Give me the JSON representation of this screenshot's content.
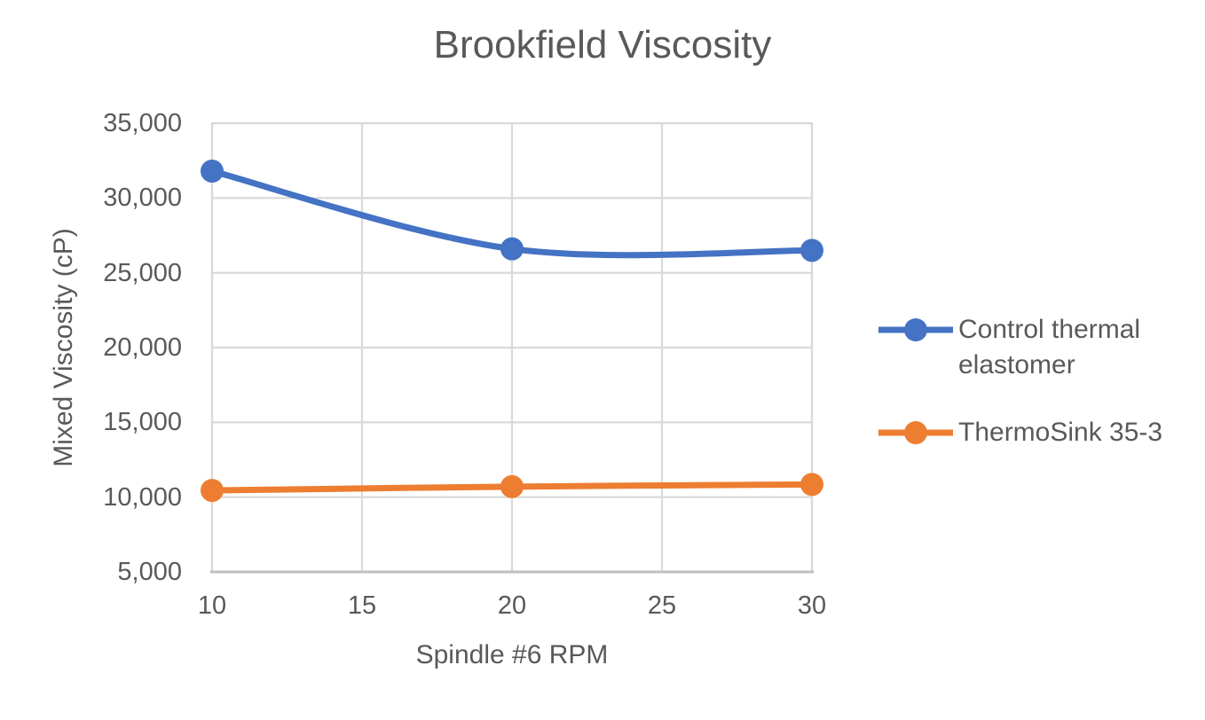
{
  "chart_data": {
    "type": "line",
    "title": "Brookfield Viscosity",
    "xlabel": "Spindle #6 RPM",
    "ylabel": "Mixed Viscosity (cP)",
    "x_axis": {
      "min": 10,
      "max": 30,
      "tick_values": [
        10,
        15,
        20,
        25,
        30
      ],
      "tick_labels": [
        "10",
        "15",
        "20",
        "25",
        "30"
      ]
    },
    "y_axis": {
      "min": 5000,
      "max": 35000,
      "step": 5000,
      "tick_values": [
        35000,
        30000,
        25000,
        20000,
        15000,
        10000,
        5000
      ],
      "tick_labels": [
        "35,000",
        "30,000",
        "25,000",
        "20,000",
        "15,000",
        "10,000",
        "5,000"
      ]
    },
    "series": [
      {
        "name": "Control thermal elastomer",
        "color": "#4472C4",
        "x": [
          10,
          20,
          30
        ],
        "values": [
          31800,
          26600,
          26500
        ]
      },
      {
        "name": "ThermoSink 35-3",
        "color": "#ED7D31",
        "x": [
          10,
          20,
          30
        ],
        "values": [
          10450,
          10700,
          10850
        ]
      }
    ],
    "smooth": true,
    "grid": true,
    "legend_position": "right",
    "marker": "circle",
    "colors": {
      "text": "#595959",
      "gridline": "#D9D9D9",
      "axis_line": "#BFBFBF",
      "background": "#FFFFFF"
    }
  }
}
